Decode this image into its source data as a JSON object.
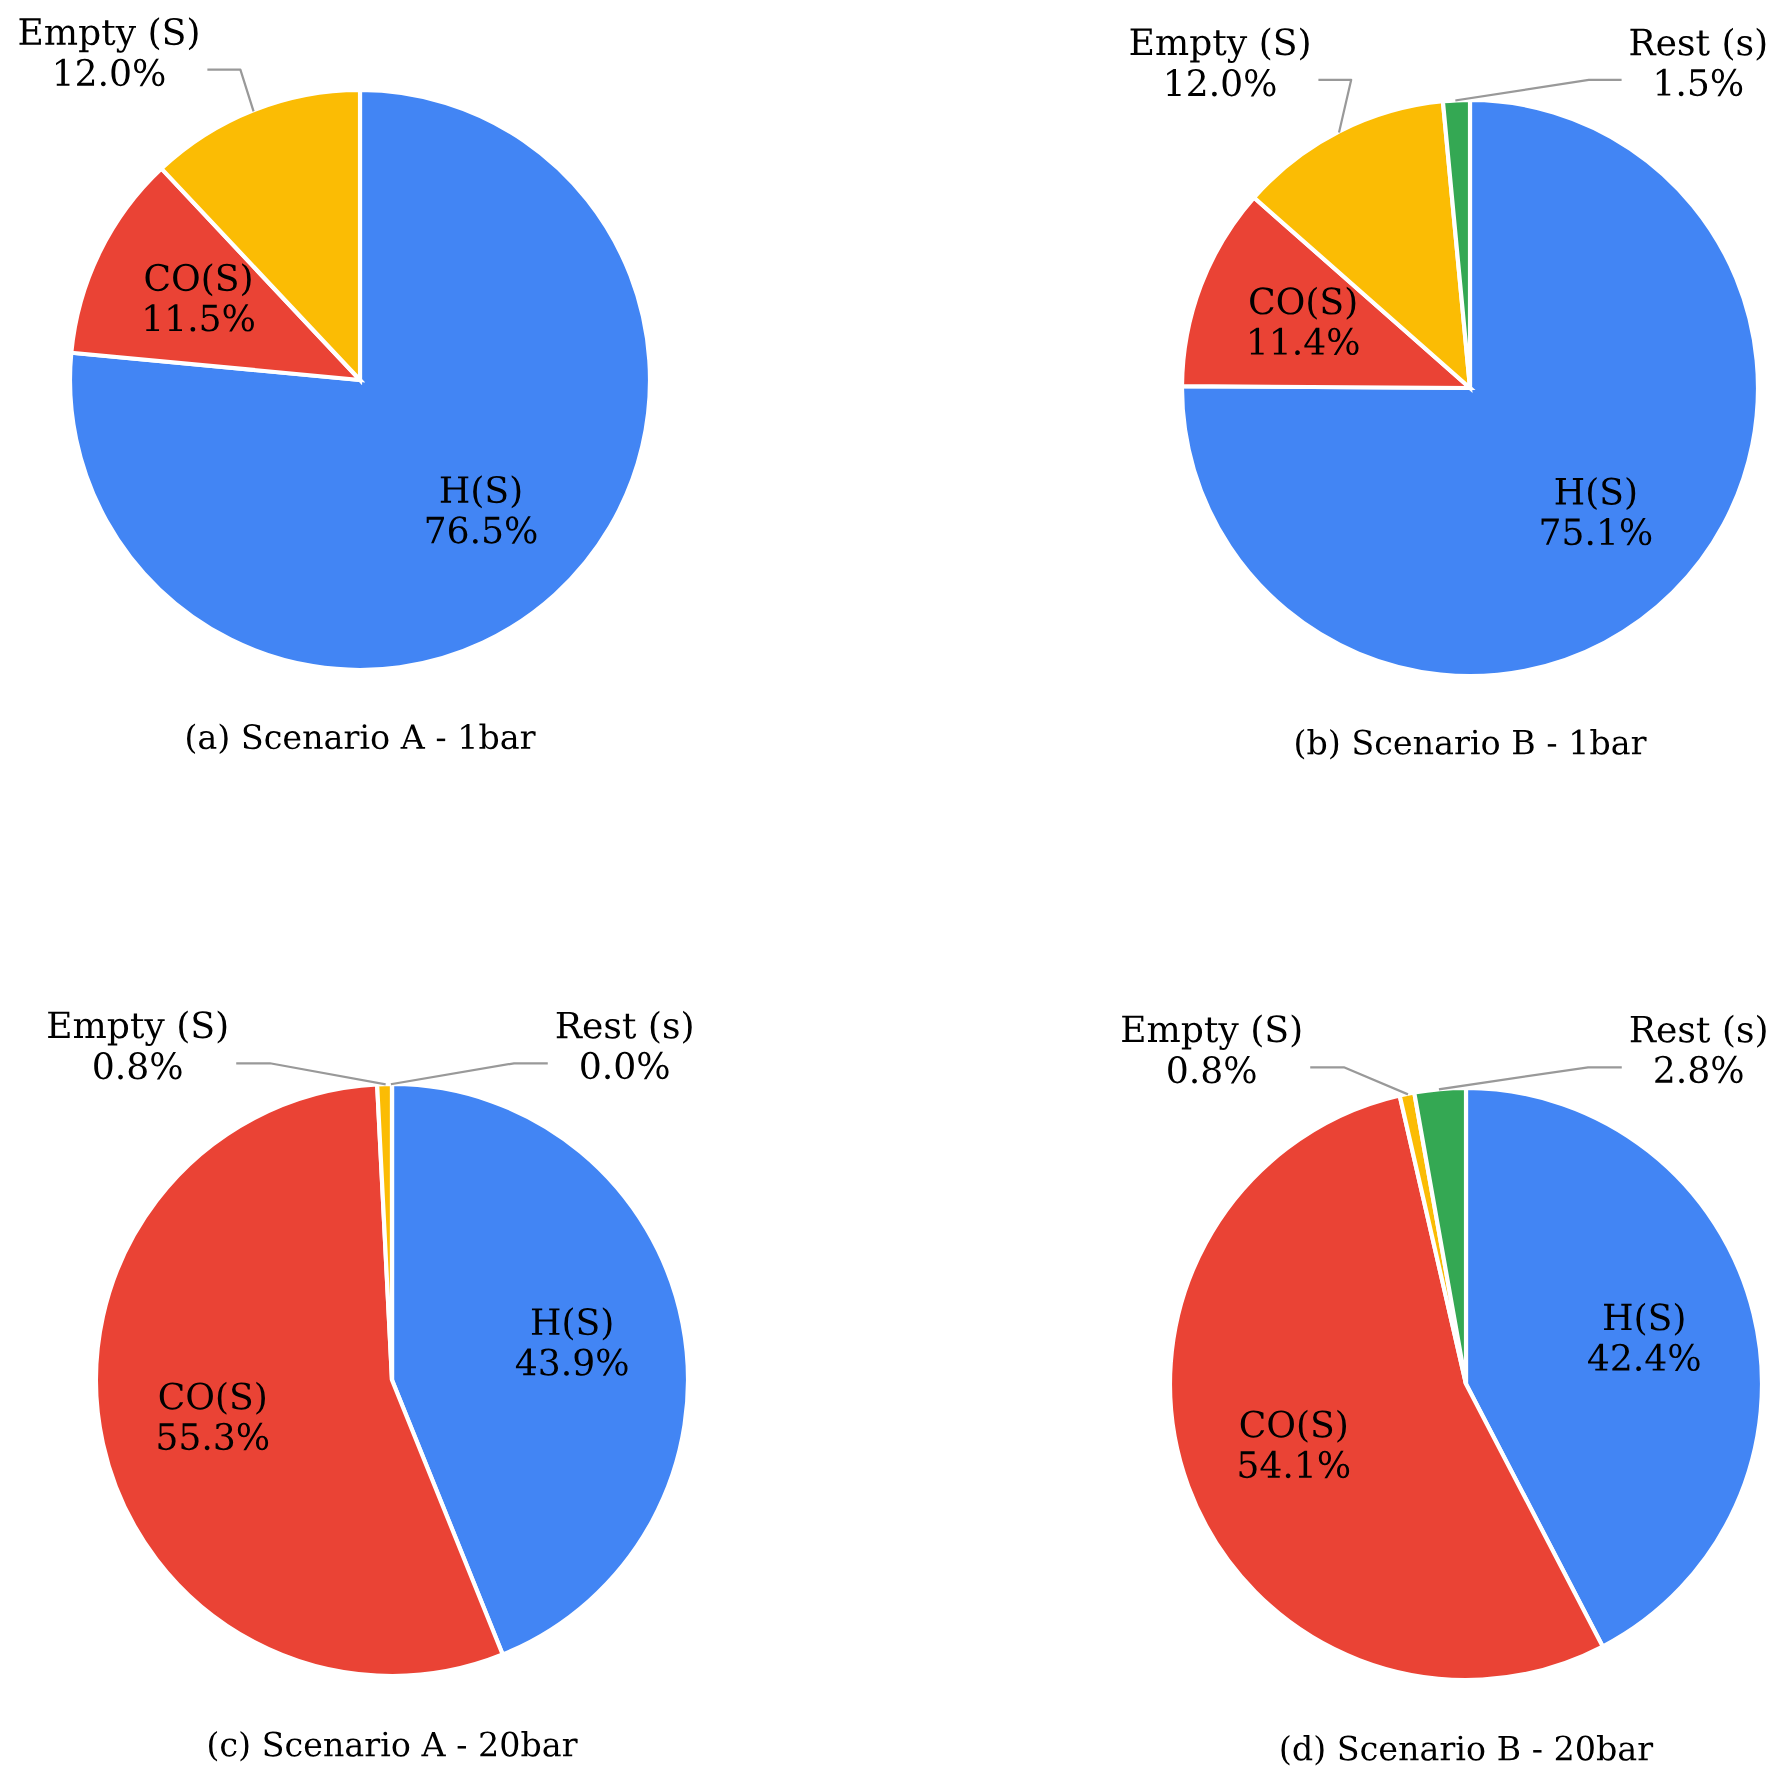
{
  "chart_data": [
    {
      "type": "pie",
      "title": "(a) Scenario A - 1bar",
      "categories": [
        "H(S)",
        "CO(S)",
        "Empty (S)"
      ],
      "values": [
        76.5,
        11.5,
        12.0
      ],
      "value_labels": [
        "76.5%",
        "11.5%",
        "12.0%"
      ],
      "colors": [
        "#4285f4",
        "#ea4335",
        "#fbbc04"
      ]
    },
    {
      "type": "pie",
      "title": "(b) Scenario B - 1bar",
      "categories": [
        "H(S)",
        "CO(S)",
        "Empty (S)",
        "Rest (s)"
      ],
      "values": [
        75.1,
        11.4,
        12.0,
        1.5
      ],
      "value_labels": [
        "75.1%",
        "11.4%",
        "12.0%",
        "1.5%"
      ],
      "colors": [
        "#4285f4",
        "#ea4335",
        "#fbbc04",
        "#34a853"
      ]
    },
    {
      "type": "pie",
      "title": "(c) Scenario A - 20bar",
      "categories": [
        "H(S)",
        "CO(S)",
        "Empty (S)",
        "Rest (s)"
      ],
      "values": [
        43.9,
        55.3,
        0.8,
        0.0
      ],
      "value_labels": [
        "43.9%",
        "55.3%",
        "0.8%",
        "0.0%"
      ],
      "colors": [
        "#4285f4",
        "#ea4335",
        "#fbbc04",
        "#34a853"
      ]
    },
    {
      "type": "pie",
      "title": "(d) Scenario B - 20bar",
      "categories": [
        "H(S)",
        "CO(S)",
        "Empty (S)",
        "Rest (s)"
      ],
      "values": [
        42.4,
        54.1,
        0.8,
        2.8
      ],
      "value_labels": [
        "42.4%",
        "54.1%",
        "0.8%",
        "2.8%"
      ],
      "colors": [
        "#4285f4",
        "#ea4335",
        "#fbbc04",
        "#34a853"
      ]
    }
  ]
}
